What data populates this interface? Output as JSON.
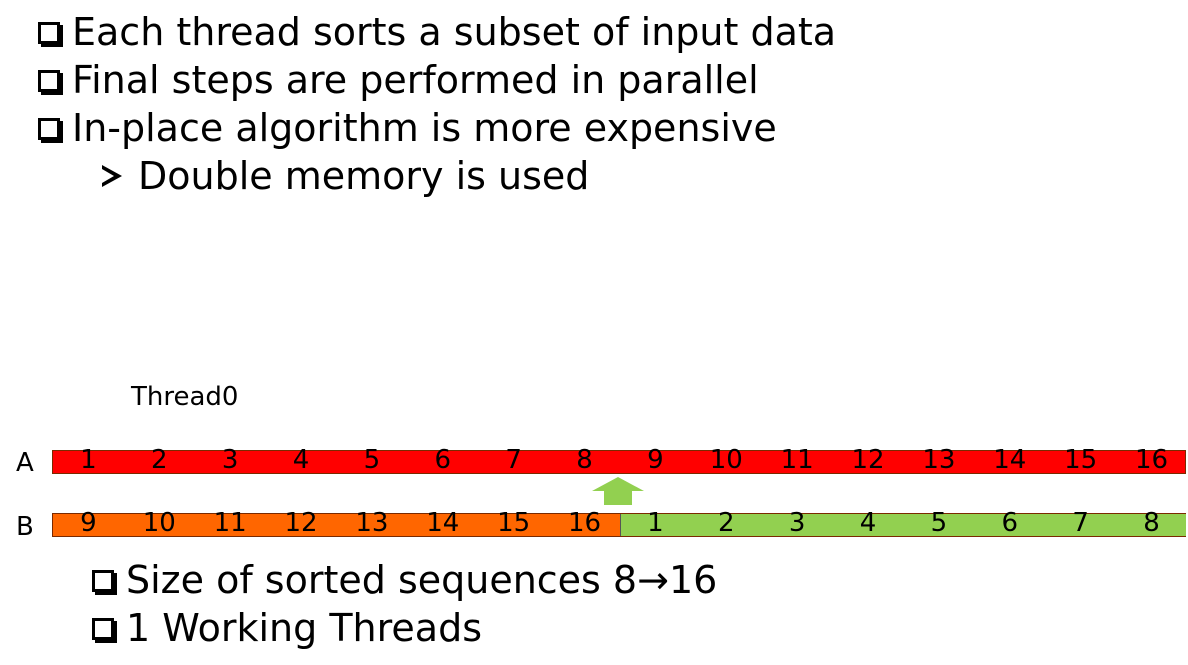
{
  "bullets": [
    {
      "text": "Each thread sorts a subset of input data"
    },
    {
      "text": "Final steps are performed in parallel"
    },
    {
      "text": "In-place algorithm is more expensive"
    }
  ],
  "sub_bullet": {
    "text": "Double memory is used"
  },
  "thread_label": "Thread0",
  "array_a": {
    "label": "A",
    "values": [
      "1",
      "2",
      "3",
      "4",
      "5",
      "6",
      "7",
      "8",
      "9",
      "10",
      "11",
      "12",
      "13",
      "14",
      "15",
      "16"
    ],
    "color": "#ff0000"
  },
  "array_b": {
    "label": "B",
    "left_values": [
      "9",
      "10",
      "11",
      "12",
      "13",
      "14",
      "15",
      "16"
    ],
    "right_values": [
      "1",
      "2",
      "3",
      "4",
      "5",
      "6",
      "7",
      "8"
    ],
    "left_color": "#ff6600",
    "right_color": "#92d050"
  },
  "pointer_color": "#92d050",
  "summary": [
    {
      "text": "Size of sorted sequences 8→16"
    },
    {
      "text": "1 Working Threads"
    }
  ]
}
